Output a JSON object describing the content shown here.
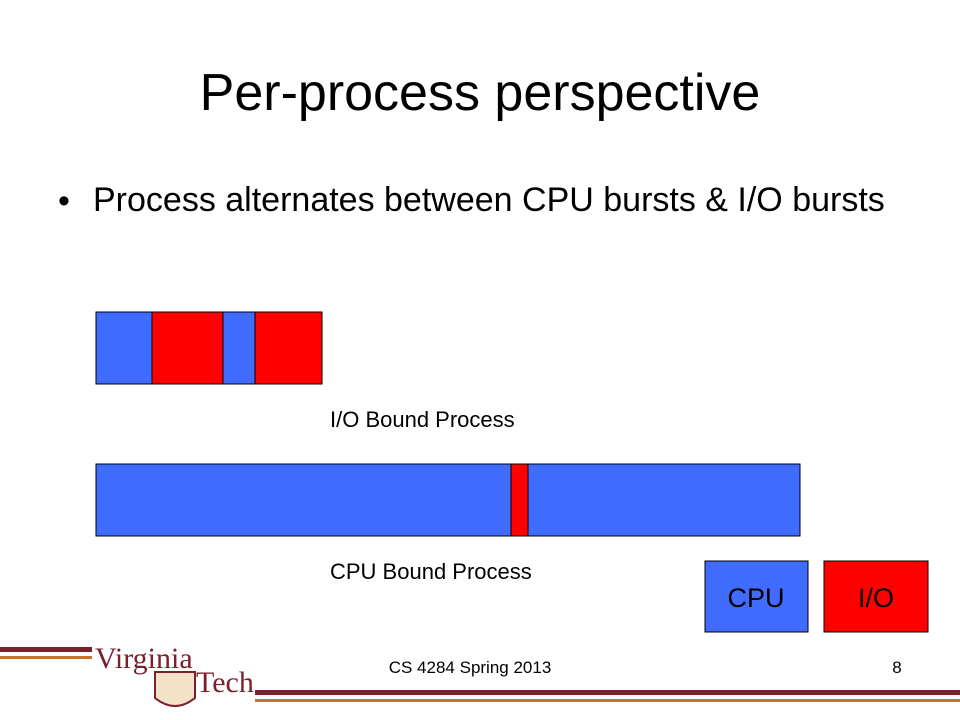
{
  "slide": {
    "title": "Per-process perspective",
    "bullets": [
      "Process alternates between CPU bursts & I/O bursts"
    ],
    "diagram": {
      "io_bound_label": "I/O Bound Process",
      "cpu_bound_label": "CPU Bound Process",
      "legend": [
        "CPU",
        "I/O"
      ]
    },
    "footer": {
      "course": "CS 4284 Spring 2013",
      "page": "8",
      "logo": [
        "Virginia",
        "Tech"
      ]
    }
  }
}
